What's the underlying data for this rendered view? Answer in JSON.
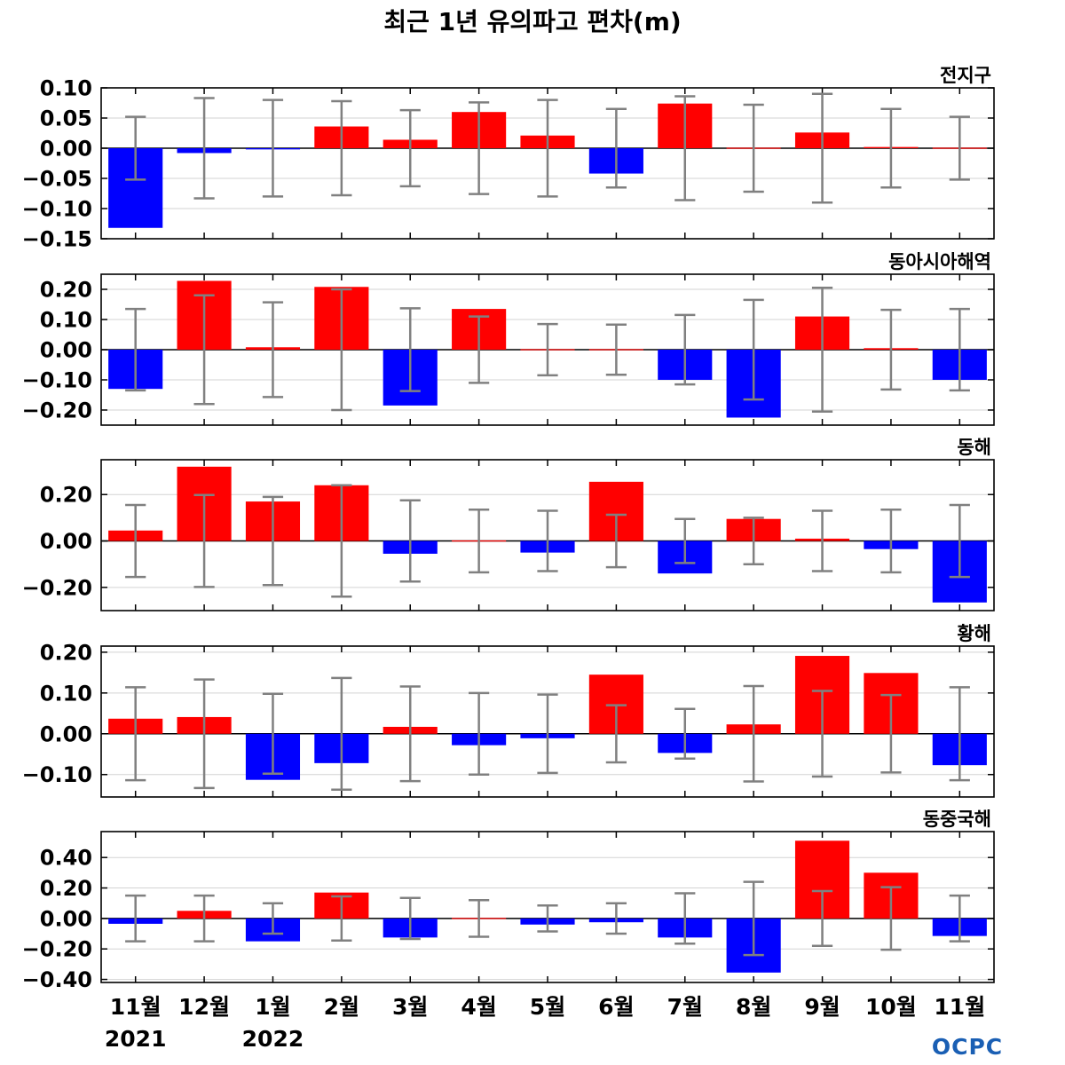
{
  "chart_data": {
    "type": "bar",
    "title": "최근 1년 유의파고 편차(m)",
    "categories": [
      "11월",
      "12월",
      "1월",
      "2월",
      "3월",
      "4월",
      "5월",
      "6월",
      "7월",
      "8월",
      "9월",
      "10월",
      "11월"
    ],
    "year_labels": [
      {
        "index": 0,
        "text": "2021"
      },
      {
        "index": 2,
        "text": "2022"
      }
    ],
    "colors": {
      "positive": "#ff0000",
      "negative": "#0000ff",
      "errorbar": "#808080",
      "grid": "#d3d3d3"
    },
    "logo_text": "OCPC",
    "panels": [
      {
        "name": "전지구",
        "ylim": [
          -0.15,
          0.1
        ],
        "yticks": [
          "0.10",
          "0.05",
          "0.00",
          "-0.05",
          "-0.10",
          "-0.15"
        ],
        "values": [
          -0.132,
          -0.008,
          -0.002,
          0.036,
          0.014,
          0.06,
          0.021,
          -0.042,
          0.074,
          0.0,
          0.026,
          0.002,
          0.0
        ],
        "errors": [
          0.052,
          0.083,
          0.08,
          0.078,
          0.063,
          0.076,
          0.08,
          0.065,
          0.086,
          0.072,
          0.09,
          0.065,
          0.052
        ]
      },
      {
        "name": "동아시아해역",
        "ylim": [
          -0.25,
          0.25
        ],
        "yticks": [
          "0.20",
          "0.10",
          "0.00",
          "-0.10",
          "-0.20"
        ],
        "values": [
          -0.13,
          0.228,
          0.008,
          0.208,
          -0.185,
          0.135,
          0.0,
          0.0,
          -0.1,
          -0.225,
          0.11,
          0.005,
          -0.1
        ],
        "errors": [
          0.135,
          0.18,
          0.157,
          0.2,
          0.137,
          0.11,
          0.085,
          0.083,
          0.115,
          0.165,
          0.205,
          0.132,
          0.135
        ]
      },
      {
        "name": "동해",
        "ylim": [
          -0.3,
          0.35
        ],
        "yticks": [
          "0.20",
          "0.00",
          "-0.20"
        ],
        "values": [
          0.045,
          0.32,
          0.17,
          0.24,
          -0.055,
          0.0,
          -0.05,
          0.255,
          -0.14,
          0.095,
          0.01,
          -0.035,
          -0.265
        ],
        "errors": [
          0.155,
          0.198,
          0.19,
          0.24,
          0.175,
          0.135,
          0.13,
          0.113,
          0.095,
          0.1,
          0.13,
          0.135,
          0.155
        ]
      },
      {
        "name": "황해",
        "ylim": [
          -0.155,
          0.215
        ],
        "yticks": [
          "0.20",
          "0.10",
          "0.00",
          "-0.10"
        ],
        "values": [
          0.037,
          0.041,
          -0.113,
          -0.072,
          0.017,
          -0.028,
          -0.011,
          0.145,
          -0.047,
          0.023,
          0.191,
          0.149,
          -0.077
        ],
        "errors": [
          0.114,
          0.133,
          0.098,
          0.137,
          0.116,
          0.1,
          0.096,
          0.07,
          0.061,
          0.117,
          0.105,
          0.095,
          0.114
        ]
      },
      {
        "name": "동중국해",
        "ylim": [
          -0.42,
          0.57
        ],
        "yticks": [
          "0.40",
          "0.20",
          "0.00",
          "-0.20",
          "-0.40"
        ],
        "values": [
          -0.035,
          0.05,
          -0.15,
          0.17,
          -0.125,
          0.0,
          -0.04,
          -0.025,
          -0.125,
          -0.355,
          0.51,
          0.3,
          -0.115
        ],
        "errors": [
          0.15,
          0.15,
          0.1,
          0.145,
          0.135,
          0.12,
          0.085,
          0.1,
          0.165,
          0.24,
          0.18,
          0.205,
          0.15
        ]
      }
    ]
  }
}
